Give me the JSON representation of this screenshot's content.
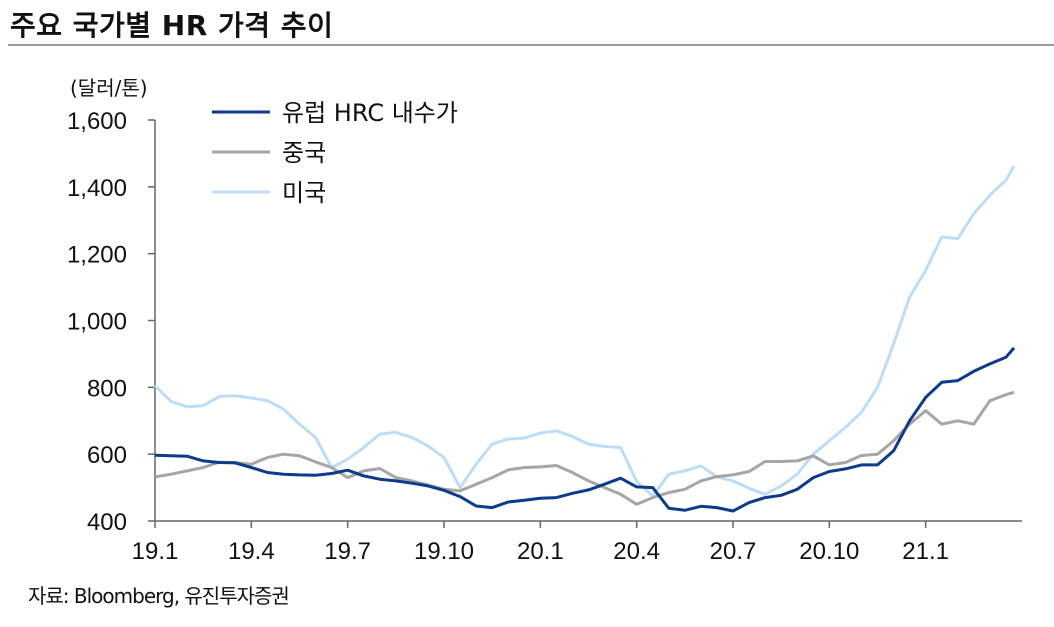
{
  "title": "주요 국가별 HR 가격 추이",
  "source": "자료: Bloomberg, 유진투자증권",
  "chart_data": {
    "type": "line",
    "ylabel": "(달러/톤)",
    "ylim": [
      400,
      1600
    ],
    "yticks": [
      400,
      600,
      800,
      1000,
      1200,
      1400,
      1600
    ],
    "ytick_labels": [
      "400",
      "600",
      "800",
      "1,000",
      "1,200",
      "1,400",
      "1,600"
    ],
    "xlim": [
      0,
      27
    ],
    "xticks": [
      0,
      3,
      6,
      9,
      12,
      15,
      18,
      21,
      24
    ],
    "xtick_labels": [
      "19.1",
      "19.4",
      "19.7",
      "19.10",
      "20.1",
      "20.4",
      "20.7",
      "20.10",
      "21.1"
    ],
    "legend_position": "top-left",
    "series": [
      {
        "name": "유럽 HRC 내수가",
        "color": "#0e3a8c",
        "points": [
          [
            0,
            597
          ],
          [
            1,
            594
          ],
          [
            1.5,
            580
          ],
          [
            2,
            575
          ],
          [
            2.5,
            574
          ],
          [
            3,
            560
          ],
          [
            3.5,
            545
          ],
          [
            4,
            540
          ],
          [
            4.5,
            538
          ],
          [
            5,
            537
          ],
          [
            5.5,
            542
          ],
          [
            6,
            552
          ],
          [
            6.5,
            535
          ],
          [
            7,
            525
          ],
          [
            7.5,
            520
          ],
          [
            8,
            513
          ],
          [
            8.5,
            505
          ],
          [
            9,
            492
          ],
          [
            9.5,
            473
          ],
          [
            10,
            445
          ],
          [
            10.5,
            440
          ],
          [
            11,
            457
          ],
          [
            11.5,
            462
          ],
          [
            12,
            468
          ],
          [
            12.5,
            470
          ],
          [
            13,
            483
          ],
          [
            13.5,
            493
          ],
          [
            14,
            510
          ],
          [
            14.5,
            528
          ],
          [
            15,
            502
          ],
          [
            15.5,
            500
          ],
          [
            16,
            438
          ],
          [
            16.5,
            432
          ],
          [
            17,
            444
          ],
          [
            17.5,
            440
          ],
          [
            18,
            430
          ],
          [
            18.5,
            455
          ],
          [
            19,
            470
          ],
          [
            19.5,
            477
          ],
          [
            20,
            495
          ],
          [
            20.5,
            530
          ],
          [
            21,
            548
          ],
          [
            21.5,
            556
          ],
          [
            22,
            568
          ],
          [
            22.5,
            568
          ],
          [
            23,
            610
          ],
          [
            23.5,
            700
          ],
          [
            24,
            770
          ],
          [
            24.5,
            815
          ],
          [
            25,
            820
          ],
          [
            25.5,
            848
          ],
          [
            26,
            870
          ],
          [
            26.5,
            890
          ],
          [
            26.75,
            918
          ]
        ]
      },
      {
        "name": "중국",
        "color": "#a6a6a6",
        "points": [
          [
            0,
            532
          ],
          [
            0.5,
            540
          ],
          [
            1,
            550
          ],
          [
            1.5,
            560
          ],
          [
            2,
            576
          ],
          [
            2.5,
            575
          ],
          [
            3,
            570
          ],
          [
            3.5,
            590
          ],
          [
            4,
            600
          ],
          [
            4.5,
            595
          ],
          [
            5,
            577
          ],
          [
            5.5,
            560
          ],
          [
            6,
            530
          ],
          [
            6.5,
            550
          ],
          [
            7,
            557
          ],
          [
            7.5,
            530
          ],
          [
            8,
            520
          ],
          [
            8.5,
            508
          ],
          [
            9,
            495
          ],
          [
            9.5,
            490
          ],
          [
            10,
            510
          ],
          [
            10.5,
            530
          ],
          [
            11,
            553
          ],
          [
            11.5,
            560
          ],
          [
            12,
            562
          ],
          [
            12.5,
            566
          ],
          [
            13,
            545
          ],
          [
            13.5,
            520
          ],
          [
            14,
            500
          ],
          [
            14.5,
            480
          ],
          [
            15,
            450
          ],
          [
            15.5,
            470
          ],
          [
            16,
            485
          ],
          [
            16.5,
            495
          ],
          [
            17,
            520
          ],
          [
            17.5,
            533
          ],
          [
            18,
            538
          ],
          [
            18.5,
            548
          ],
          [
            19,
            578
          ],
          [
            19.5,
            578
          ],
          [
            20,
            580
          ],
          [
            20.5,
            595
          ],
          [
            21,
            568
          ],
          [
            21.5,
            575
          ],
          [
            22,
            596
          ],
          [
            22.5,
            600
          ],
          [
            23,
            640
          ],
          [
            23.5,
            690
          ],
          [
            24,
            730
          ],
          [
            24.5,
            690
          ],
          [
            25,
            700
          ],
          [
            25.5,
            690
          ],
          [
            26,
            760
          ],
          [
            26.5,
            778
          ],
          [
            26.75,
            785
          ]
        ]
      },
      {
        "name": "미국",
        "color": "#bfdcf7",
        "points": [
          [
            0,
            805
          ],
          [
            0.5,
            758
          ],
          [
            1,
            742
          ],
          [
            1.5,
            745
          ],
          [
            2,
            773
          ],
          [
            2.5,
            775
          ],
          [
            3,
            768
          ],
          [
            3.5,
            760
          ],
          [
            4,
            735
          ],
          [
            4.5,
            690
          ],
          [
            5,
            650
          ],
          [
            5.5,
            560
          ],
          [
            6,
            585
          ],
          [
            6.5,
            620
          ],
          [
            7,
            660
          ],
          [
            7.5,
            665
          ],
          [
            8,
            650
          ],
          [
            8.5,
            625
          ],
          [
            9,
            590
          ],
          [
            9.5,
            500
          ],
          [
            10,
            570
          ],
          [
            10.5,
            630
          ],
          [
            11,
            645
          ],
          [
            11.5,
            648
          ],
          [
            12,
            663
          ],
          [
            12.5,
            670
          ],
          [
            13,
            653
          ],
          [
            13.5,
            630
          ],
          [
            14,
            623
          ],
          [
            14.5,
            620
          ],
          [
            15,
            518
          ],
          [
            15.5,
            475
          ],
          [
            16,
            540
          ],
          [
            16.5,
            550
          ],
          [
            17,
            565
          ],
          [
            17.5,
            532
          ],
          [
            18,
            520
          ],
          [
            18.5,
            498
          ],
          [
            19,
            480
          ],
          [
            19.5,
            505
          ],
          [
            20,
            540
          ],
          [
            20.5,
            600
          ],
          [
            21,
            640
          ],
          [
            21.5,
            680
          ],
          [
            22,
            725
          ],
          [
            22.5,
            800
          ],
          [
            23,
            930
          ],
          [
            23.5,
            1070
          ],
          [
            24,
            1150
          ],
          [
            24.5,
            1250
          ],
          [
            25,
            1245
          ],
          [
            25.5,
            1320
          ],
          [
            26,
            1375
          ],
          [
            26.5,
            1420
          ],
          [
            26.75,
            1462
          ]
        ]
      }
    ]
  }
}
